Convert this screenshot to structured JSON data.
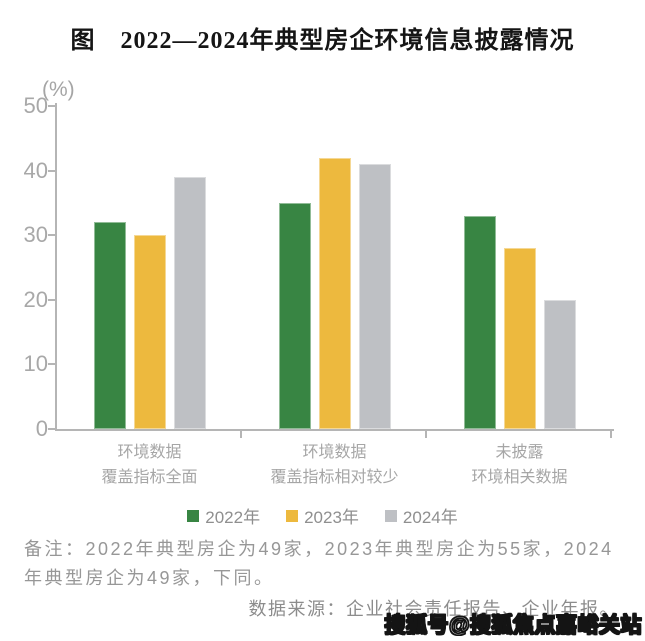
{
  "title": "图　2022—2024年典型房企环境信息披露情况",
  "chart_data": {
    "type": "bar",
    "title": "图 2022—2024年典型房企环境信息披露情况",
    "unit_label": "(%)",
    "ylabel": "(%)",
    "ylim": [
      0,
      50
    ],
    "yticks": [
      0,
      10,
      20,
      30,
      40,
      50
    ],
    "grid": false,
    "legend_position": "bottom",
    "categories": [
      "环境数据\n覆盖指标全面",
      "环境数据\n覆盖指标相对较少",
      "未披露\n环境相关数据"
    ],
    "series": [
      {
        "name": "2022年",
        "color": "#388543",
        "values": [
          32,
          35,
          33
        ]
      },
      {
        "name": "2023年",
        "color": "#EDB93E",
        "values": [
          30,
          42,
          28
        ]
      },
      {
        "name": "2024年",
        "color": "#BEC0C4",
        "values": [
          39,
          41,
          20
        ]
      }
    ]
  },
  "remark": "备注：2022年典型房企为49家，2023年典型房企为55家，2024\n年典型房企为49家，下同。",
  "source": "数据来源：企业社会责任报告、企业年报。",
  "watermark": "搜狐号@搜狐焦点嘉峪关站"
}
